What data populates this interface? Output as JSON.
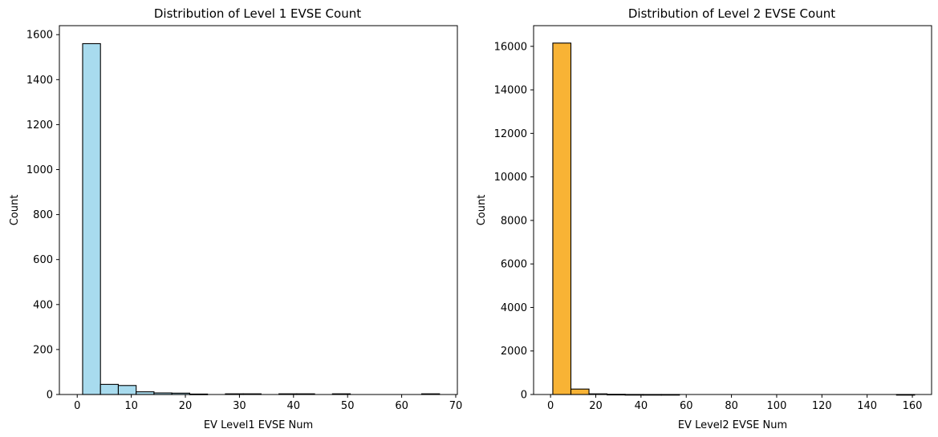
{
  "chart_data": [
    {
      "type": "bar",
      "title": "Distribution of Level 1 EVSE Count",
      "xlabel": "EV Level1 EVSE Num",
      "ylabel": "Count",
      "color": "#a8dbee",
      "edge_color": "#000000",
      "xlim": [
        -3.3,
        70.3
      ],
      "ylim": [
        0,
        1640
      ],
      "xticks": [
        0,
        10,
        20,
        30,
        40,
        50,
        60,
        70
      ],
      "yticks": [
        0,
        200,
        400,
        600,
        800,
        1000,
        1200,
        1400,
        1600
      ],
      "bin_edges": [
        1,
        4.3,
        7.6,
        10.9,
        14.2,
        17.5,
        20.8,
        24.1,
        27.4,
        30.7,
        34.0,
        37.3,
        40.6,
        43.9,
        47.2,
        50.5,
        53.8,
        57.1,
        60.4,
        63.7,
        67
      ],
      "values": [
        1560,
        45,
        40,
        12,
        7,
        6,
        2,
        0,
        3,
        3,
        0,
        3,
        3,
        0,
        3,
        0,
        0,
        0,
        0,
        3
      ],
      "grid": false
    },
    {
      "type": "bar",
      "title": "Distribution of Level 2 EVSE Count",
      "xlabel": "EV Level2 EVSE Num",
      "ylabel": "Count",
      "color": "#f8b335",
      "edge_color": "#000000",
      "xlim": [
        -7.5,
        168.5
      ],
      "ylim": [
        0,
        16950
      ],
      "xticks": [
        0,
        20,
        40,
        60,
        80,
        100,
        120,
        140,
        160
      ],
      "yticks": [
        0,
        2000,
        4000,
        6000,
        8000,
        10000,
        12000,
        14000,
        16000
      ],
      "bin_edges": [
        1,
        9,
        17,
        25,
        33,
        41,
        49,
        57,
        65,
        73,
        81,
        89,
        97,
        105,
        113,
        121,
        129,
        137,
        145,
        153,
        161
      ],
      "values": [
        16150,
        250,
        30,
        10,
        2,
        1,
        1,
        0,
        0,
        0,
        0,
        0,
        0,
        0,
        0,
        0,
        0,
        0,
        0,
        1
      ],
      "grid": false
    }
  ]
}
